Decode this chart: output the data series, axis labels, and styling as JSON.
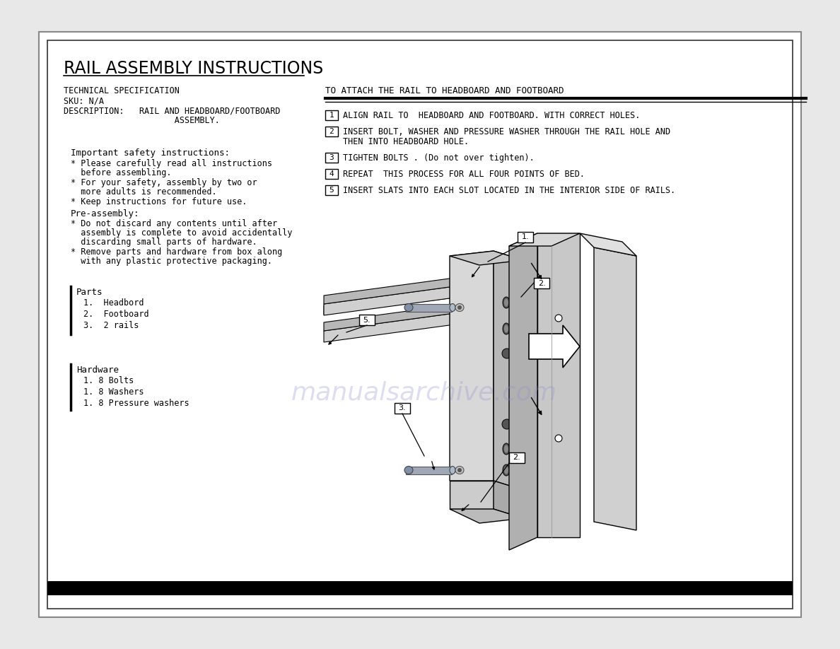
{
  "title": "RAIL ASSEMBLY INSTRUCTIONS",
  "tech_spec_lines": [
    "TECHNICAL SPECIFICATION",
    "SKU: N/A",
    "DESCRIPTION:   RAIL AND HEADBOARD/FOOTBOARD",
    "                      ASSEMBLY."
  ],
  "safety_header": "Important safety instructions:",
  "safety_bullets": [
    "* Please carefully read all instructions\n  before assembling.",
    "* For your safety, assembly by two or\n  more adults is recommended.",
    "* Keep instructions for future use."
  ],
  "preassembly_header": "Pre-assembly:",
  "preassembly_bullets": [
    "* Do not discard any contents until after\n  assembly is complete to avoid accidentally\n  discarding small parts of hardware.",
    "* Remove parts and hardware from box along\n  with any plastic protective packaging."
  ],
  "parts_header": "Parts",
  "parts_items": [
    "1.  Headbord",
    "2.  Footboard",
    "3.  2 rails"
  ],
  "hardware_header": "Hardware",
  "hardware_items": [
    "1. 8 Bolts",
    "1. 8 Washers",
    "1. 8 Pressure washers"
  ],
  "right_section_header": "TO ATTACH THE RAIL TO HEADBOARD AND FOOTBOARD",
  "steps": [
    "ALIGN RAIL TO  HEADBOARD AND FOOTBOARD. WITH CORRECT HOLES.",
    "INSERT BOLT, WASHER AND PRESSURE WASHER THROUGH THE RAIL HOLE AND\nTHEN INTO HEADBOARD HOLE.",
    "TIGHTEN BOLTS . (Do not over tighten).",
    "REPEAT  THIS PROCESS FOR ALL FOUR POINTS OF BED.",
    "INSERT SLATS INTO EACH SLOT LOCATED IN THE INTERIOR SIDE OF RAILS."
  ],
  "watermark": "manualsarchive.com",
  "bg_color": "#ffffff",
  "page_bg": "#e8e8e8",
  "outer_border_color": "#999999",
  "inner_border_color": "#444444"
}
